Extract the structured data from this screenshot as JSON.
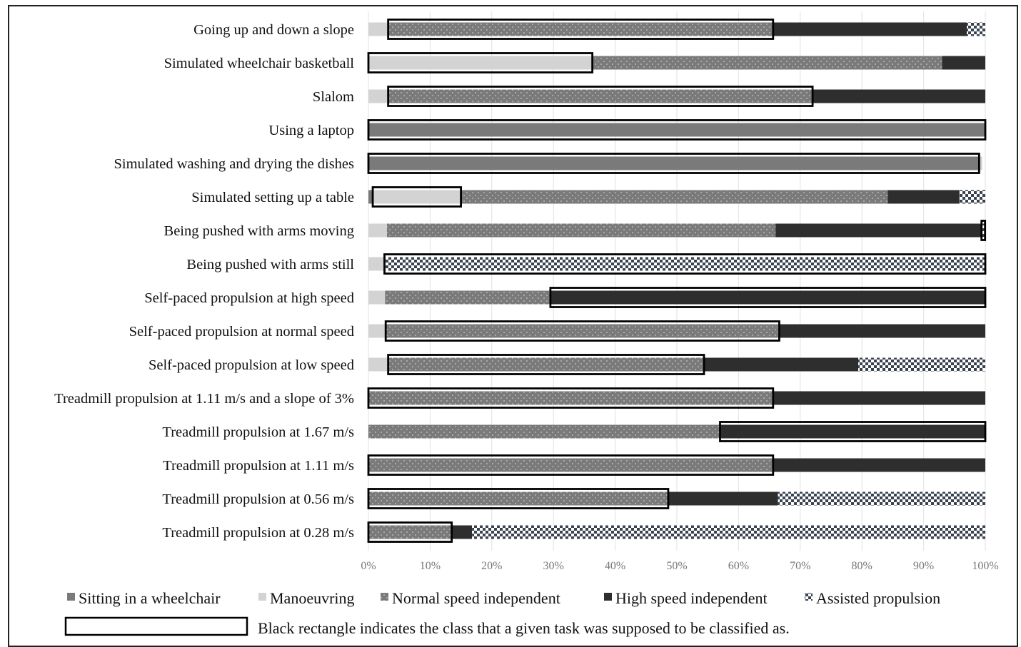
{
  "chart_data": {
    "type": "bar",
    "orientation": "horizontal",
    "stacked": "percent",
    "title": "",
    "xlabel": "",
    "ylabel": "",
    "xlim": [
      0,
      100
    ],
    "x_ticks": [
      "0%",
      "10%",
      "20%",
      "30%",
      "40%",
      "50%",
      "60%",
      "70%",
      "80%",
      "90%",
      "100%"
    ],
    "grid": "vertical",
    "legend_position": "bottom",
    "categories": [
      "Going up and down a slope",
      "Simulated wheelchair basketball",
      "Slalom",
      "Using a laptop",
      "Simulated washing and drying the dishes",
      "Simulated setting up a table",
      "Being pushed with arms moving",
      "Being pushed with arms still",
      "Self-paced propulsion at high speed",
      "Self-paced propulsion at normal speed",
      "Self-paced propulsion at low speed",
      "Treadmill propulsion at 1.11 m/s and a slope of 3%",
      "Treadmill propulsion at 1.67 m/s",
      "Treadmill propulsion at 1.11 m/s",
      "Treadmill propulsion at 0.56 m/s",
      "Treadmill propulsion at 0.28 m/s"
    ],
    "series": [
      {
        "name": "Sitting in a wheelchair",
        "key": "sitting",
        "color": "#7a7a7a",
        "values": [
          0,
          0,
          0,
          100,
          99,
          0.7,
          0,
          0,
          0,
          0,
          0,
          0,
          0,
          0,
          0,
          0
        ]
      },
      {
        "name": "Manoeuvring",
        "key": "manoeuvring",
        "color": "#d3d3d3",
        "values": [
          3.2,
          36.3,
          3.2,
          0,
          0.5,
          14.3,
          3.0,
          2.6,
          2.7,
          2.8,
          3.2,
          0,
          0,
          0,
          0,
          0
        ]
      },
      {
        "name": "Normal speed independent",
        "key": "normal",
        "color": "#7a7a7a",
        "values": [
          62.4,
          56.7,
          68.8,
          0,
          0,
          69.2,
          63.0,
          0,
          26.8,
          63.8,
          51.2,
          65.6,
          57.0,
          65.6,
          48.6,
          13.5
        ]
      },
      {
        "name": "High speed independent",
        "key": "high",
        "color": "#2e2e2e",
        "values": [
          31.4,
          7.0,
          28.0,
          0,
          0,
          11.6,
          33.5,
          0,
          70.5,
          33.4,
          25.0,
          34.4,
          43.0,
          34.4,
          17.8,
          3.3
        ]
      },
      {
        "name": "Assisted propulsion",
        "key": "assisted",
        "color": "#3a4350",
        "values": [
          3.0,
          0,
          0,
          0,
          0,
          4.2,
          0.5,
          97.4,
          0,
          0,
          20.6,
          0,
          0,
          0,
          33.6,
          83.2
        ]
      }
    ],
    "supposed_class": [
      "normal",
      "manoeuvring",
      "normal",
      "sitting",
      "sitting",
      "manoeuvring",
      "assisted",
      "assisted",
      "high",
      "normal",
      "normal",
      "normal",
      "high",
      "normal",
      "normal",
      "normal"
    ],
    "legend_note": "Black rectangle indicates the class that a given task was supposed to be classified as."
  }
}
